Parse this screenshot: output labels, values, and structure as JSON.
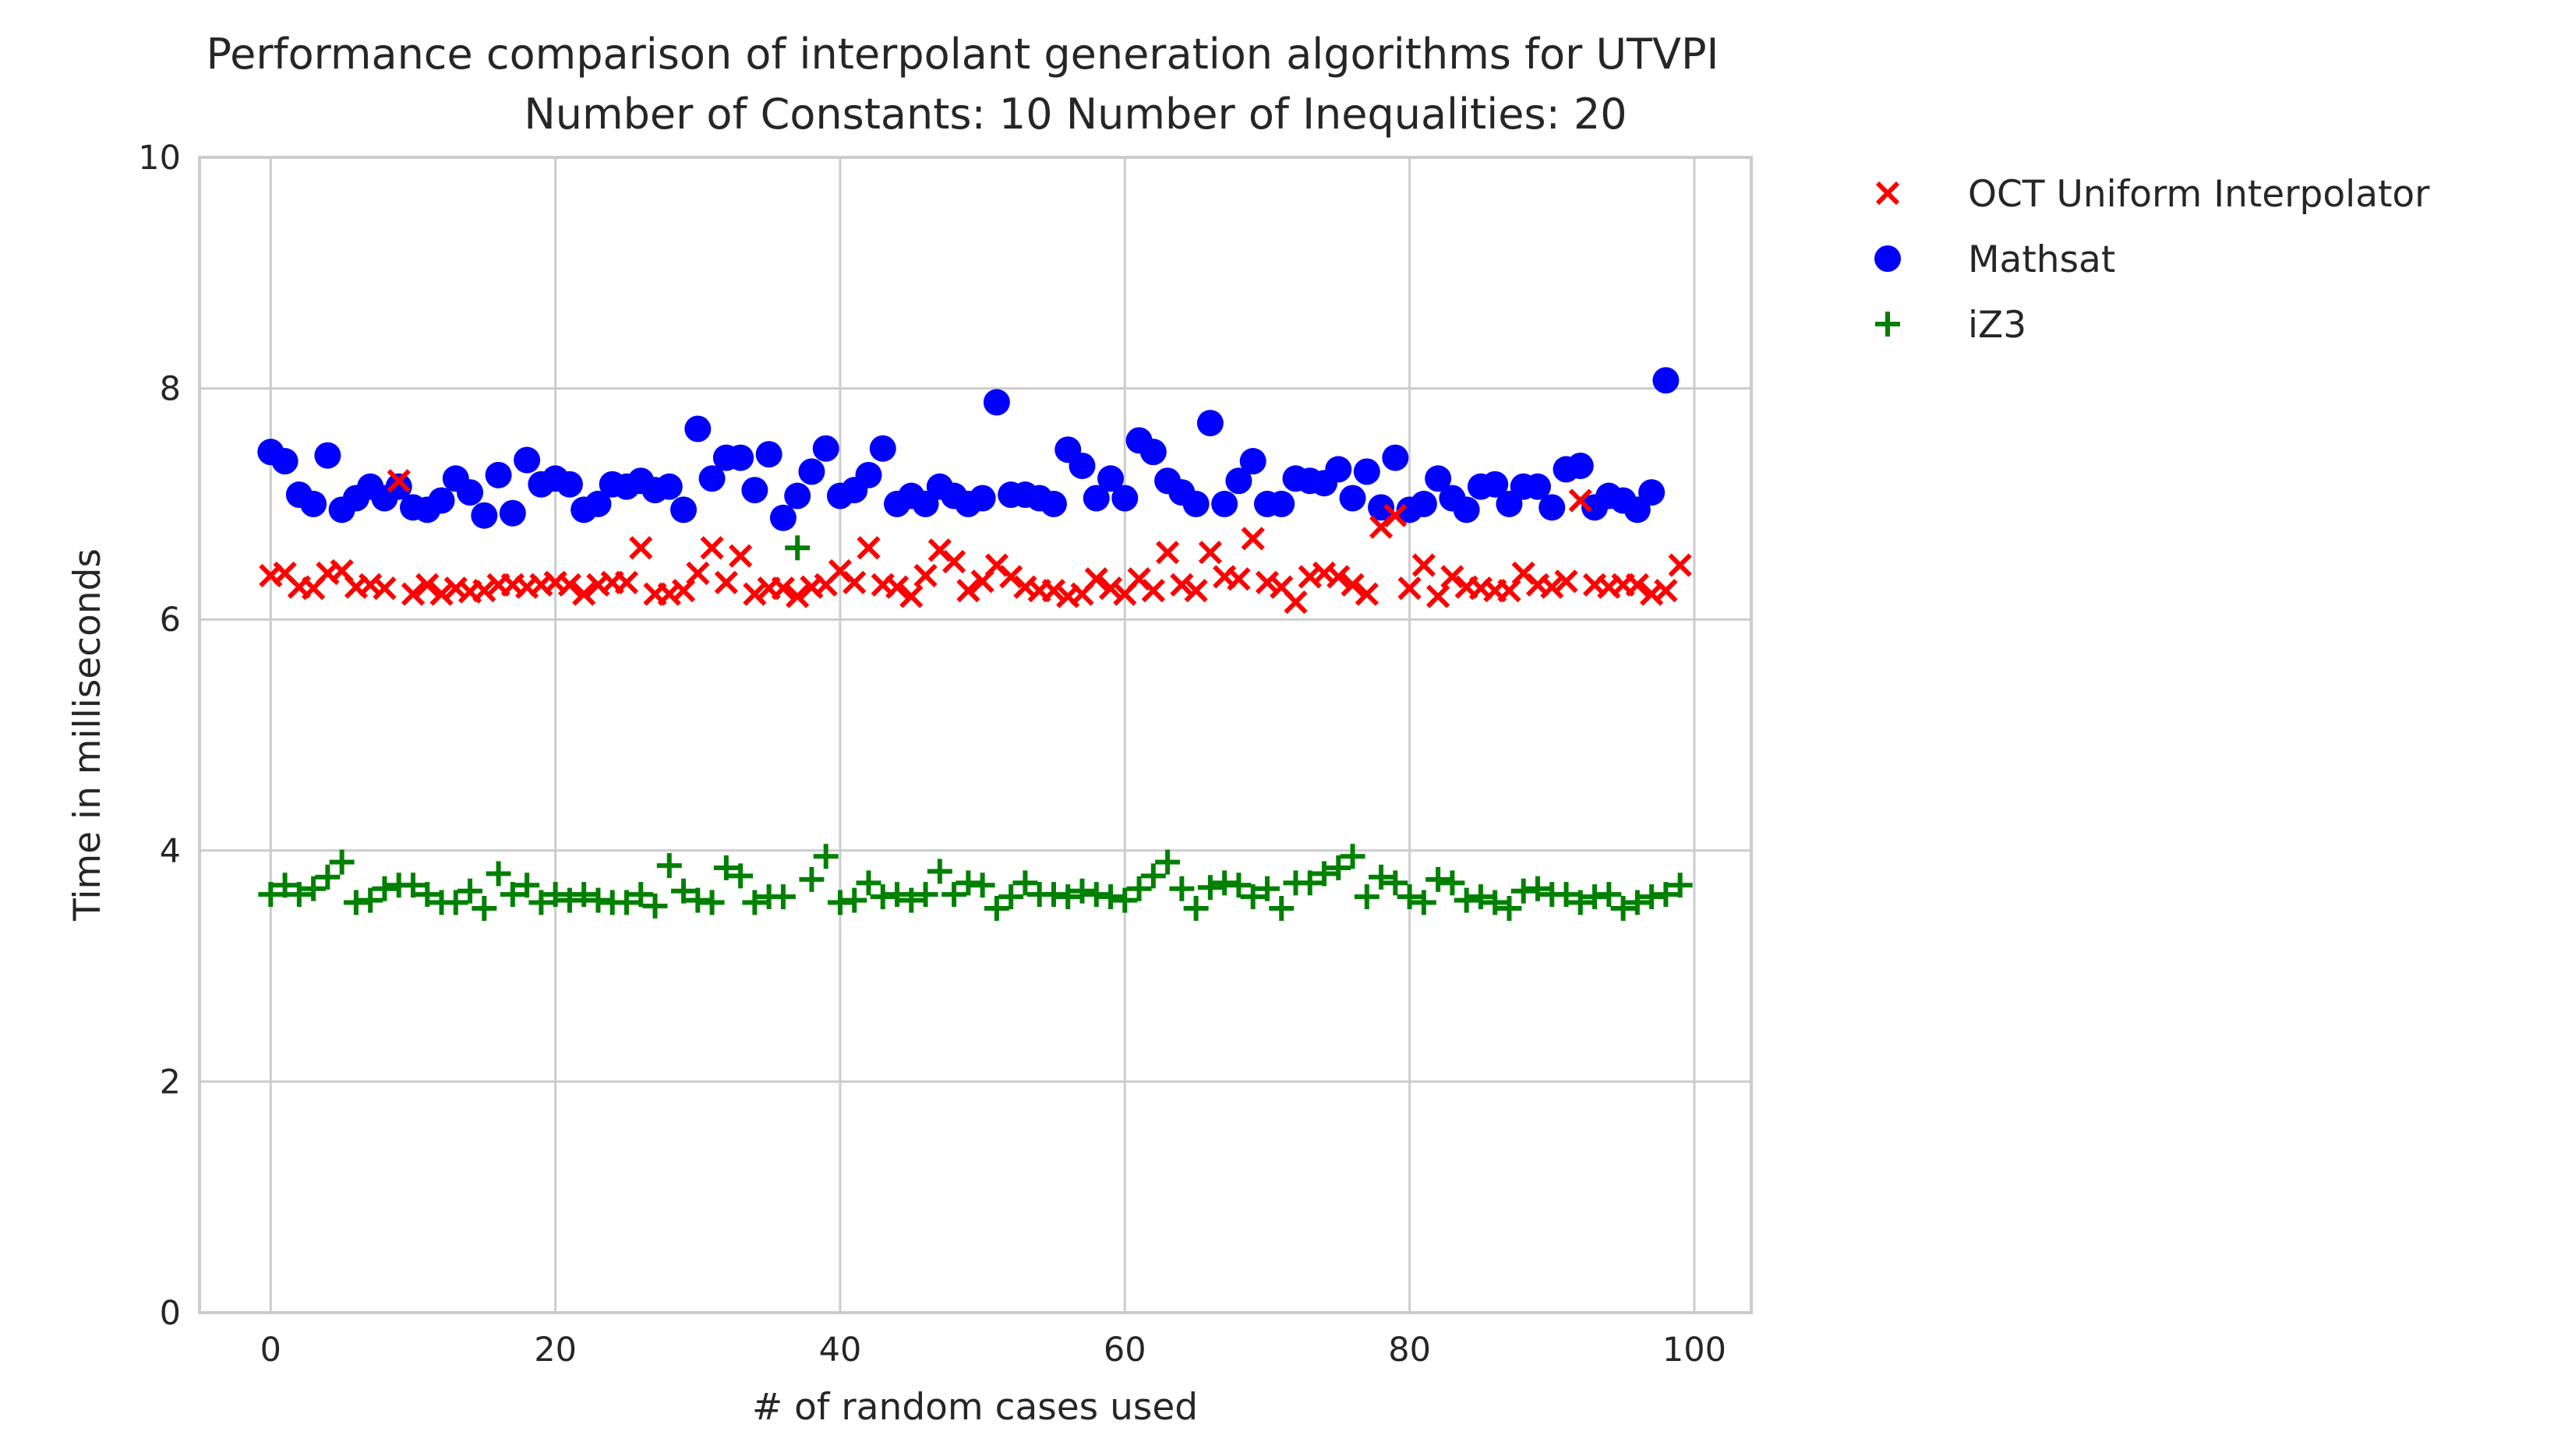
{
  "chart_data": {
    "type": "scatter",
    "title": "Performance comparison of interpolant generation algorithms for UTVPI",
    "subtitle": "Number of Constants: 10 Number of Inequalities: 20",
    "xlabel": "# of random cases used",
    "ylabel": "Time in milliseconds",
    "xlim": [
      -5,
      104
    ],
    "ylim": [
      0,
      10
    ],
    "xticks": [
      "0",
      "20",
      "40",
      "60",
      "80",
      "100"
    ],
    "yticks": [
      "0",
      "2",
      "4",
      "6",
      "8",
      "10"
    ],
    "grid": true,
    "legend_position": "outside-top-right",
    "series": [
      {
        "name": "OCT Uniform Interpolator",
        "marker": "x",
        "color": "#ff0000",
        "values": [
          6.38,
          6.4,
          6.28,
          6.27,
          6.4,
          6.42,
          6.28,
          6.3,
          6.27,
          7.2,
          6.22,
          6.3,
          6.22,
          6.27,
          6.24,
          6.25,
          6.3,
          6.3,
          6.28,
          6.3,
          6.32,
          6.3,
          6.22,
          6.3,
          6.32,
          6.32,
          6.62,
          6.22,
          6.22,
          6.25,
          6.4,
          6.62,
          6.32,
          6.55,
          6.22,
          6.27,
          6.27,
          6.2,
          6.28,
          6.3,
          6.42,
          6.32,
          6.62,
          6.3,
          6.28,
          6.2,
          6.38,
          6.6,
          6.5,
          6.25,
          6.33,
          6.47,
          6.37,
          6.28,
          6.25,
          6.25,
          6.2,
          6.22,
          6.35,
          6.27,
          6.22,
          6.35,
          6.25,
          6.58,
          6.3,
          6.25,
          6.58,
          6.37,
          6.35,
          6.7,
          6.32,
          6.28,
          6.15,
          6.37,
          6.4,
          6.37,
          6.3,
          6.22,
          6.8,
          6.9,
          6.27,
          6.47,
          6.2,
          6.37,
          6.28,
          6.27,
          6.25,
          6.25,
          6.4,
          6.3,
          6.28,
          6.33,
          7.03,
          6.3,
          6.28,
          6.3,
          6.3,
          6.22,
          6.25,
          6.47
        ]
      },
      {
        "name": "Mathsat",
        "marker": "o",
        "color": "#0000ff",
        "values": [
          7.45,
          7.37,
          7.08,
          7.0,
          7.42,
          6.95,
          7.05,
          7.15,
          7.05,
          7.15,
          6.97,
          6.95,
          7.03,
          7.22,
          7.1,
          6.9,
          7.25,
          6.92,
          7.38,
          7.17,
          7.22,
          7.17,
          6.95,
          7.0,
          7.17,
          7.15,
          7.2,
          7.12,
          7.15,
          6.95,
          7.65,
          7.22,
          7.4,
          7.4,
          7.12,
          7.43,
          6.88,
          7.07,
          7.28,
          7.48,
          7.07,
          7.12,
          7.25,
          7.48,
          7.0,
          7.07,
          7.0,
          7.15,
          7.07,
          7.0,
          7.05,
          7.88,
          7.08,
          7.08,
          7.05,
          7.0,
          7.47,
          7.33,
          7.05,
          7.22,
          7.05,
          7.55,
          7.45,
          7.2,
          7.1,
          7.0,
          7.7,
          7.0,
          7.2,
          7.37,
          7.0,
          7.0,
          7.22,
          7.2,
          7.18,
          7.3,
          7.05,
          7.28,
          6.97,
          7.4,
          6.95,
          7.0,
          7.22,
          7.05,
          6.95,
          7.15,
          7.17,
          7.0,
          7.15,
          7.15,
          6.97,
          7.3,
          7.33,
          6.97,
          7.07,
          7.03,
          6.95,
          7.1,
          8.07
        ]
      },
      {
        "name": "iZ3",
        "marker": "+",
        "color": "#008000",
        "values": [
          3.62,
          3.7,
          3.62,
          3.67,
          3.77,
          3.9,
          3.55,
          3.57,
          3.67,
          3.7,
          3.7,
          3.62,
          3.55,
          3.55,
          3.65,
          3.5,
          3.8,
          3.62,
          3.7,
          3.55,
          3.62,
          3.57,
          3.62,
          3.57,
          3.55,
          3.55,
          3.62,
          3.52,
          3.87,
          3.65,
          3.57,
          3.55,
          3.85,
          3.78,
          3.55,
          3.6,
          3.6,
          6.62,
          3.75,
          3.95,
          3.55,
          3.57,
          3.72,
          3.6,
          3.62,
          3.57,
          3.62,
          3.82,
          3.62,
          3.72,
          3.7,
          3.5,
          3.6,
          3.72,
          3.62,
          3.62,
          3.6,
          3.65,
          3.62,
          3.6,
          3.57,
          3.67,
          3.78,
          3.9,
          3.67,
          3.5,
          3.68,
          3.72,
          3.7,
          3.6,
          3.67,
          3.5,
          3.72,
          3.72,
          3.8,
          3.85,
          3.95,
          3.6,
          3.77,
          3.72,
          3.6,
          3.55,
          3.75,
          3.72,
          3.57,
          3.6,
          3.55,
          3.5,
          3.65,
          3.67,
          3.62,
          3.62,
          3.55,
          3.6,
          3.62,
          3.5,
          3.55,
          3.6,
          3.62,
          3.7
        ]
      }
    ]
  }
}
